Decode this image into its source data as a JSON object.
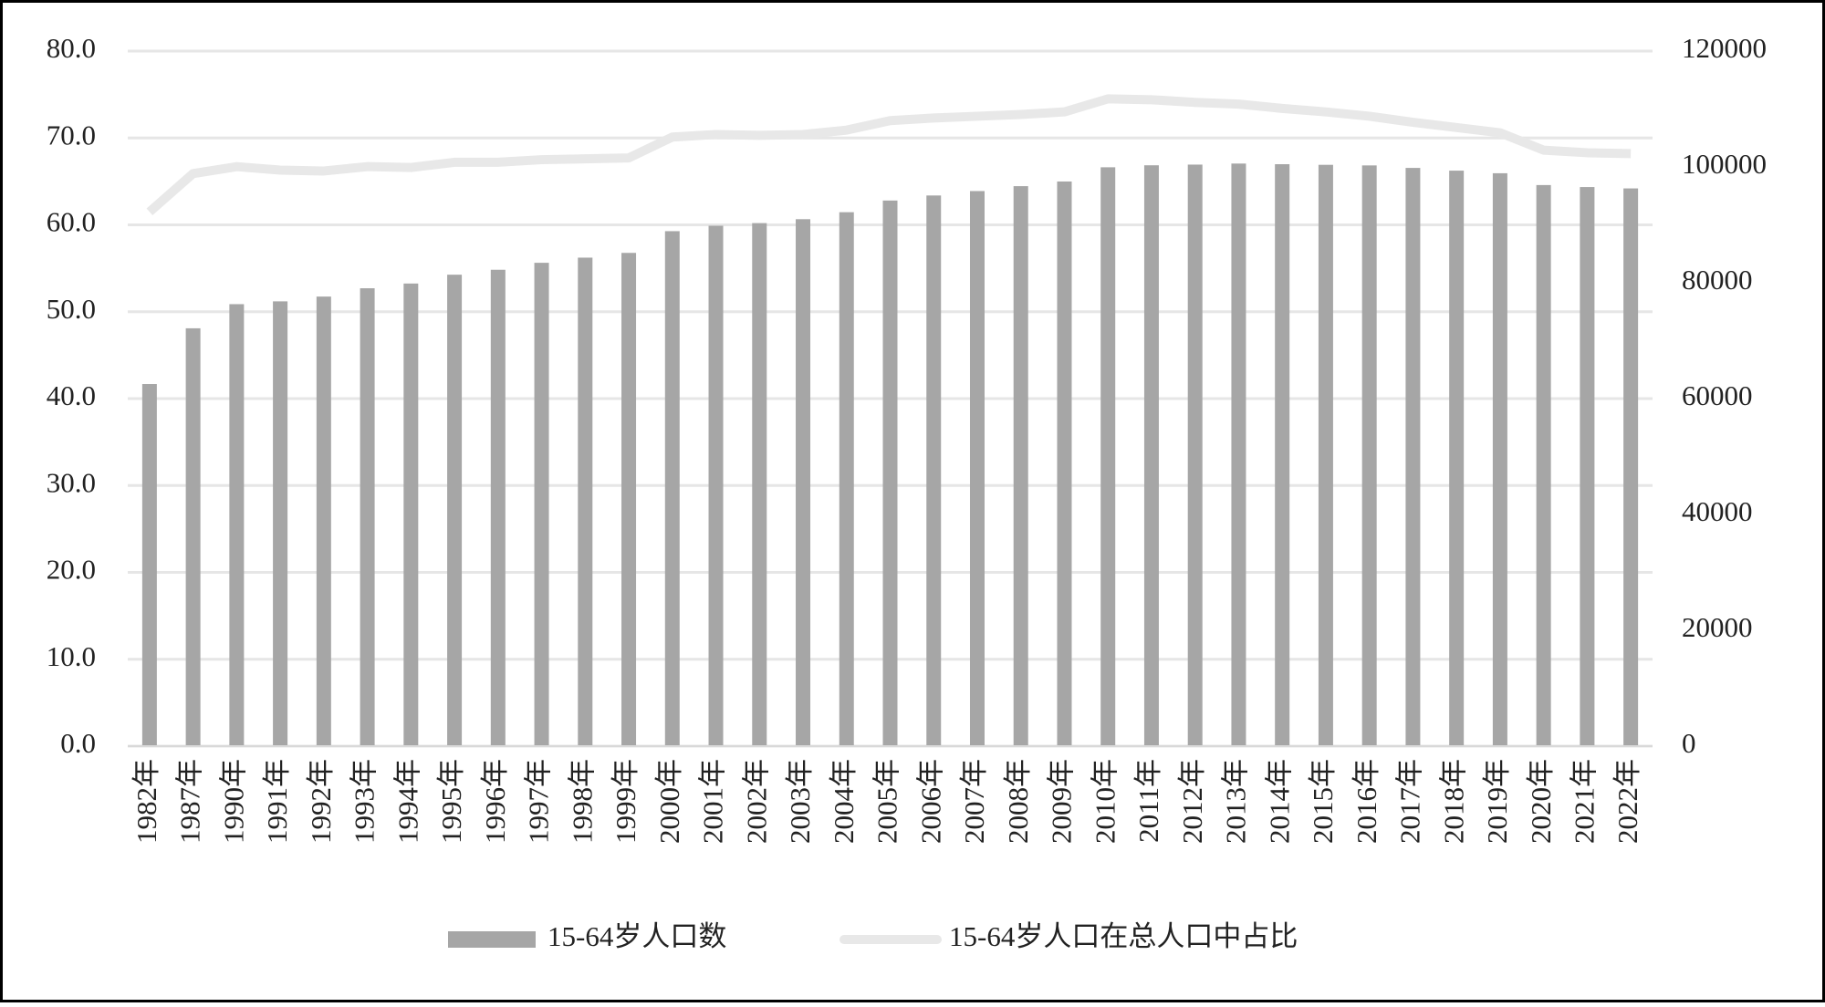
{
  "chart_data": {
    "type": "bar-line",
    "categories": [
      "1982年",
      "1987年",
      "1990年",
      "1991年",
      "1992年",
      "1993年",
      "1994年",
      "1995年",
      "1996年",
      "1997年",
      "1998年",
      "1999年",
      "2000年",
      "2001年",
      "2002年",
      "2003年",
      "2004年",
      "2005年",
      "2006年",
      "2007年",
      "2008年",
      "2009年",
      "2010年",
      "2011年",
      "2012年",
      "2013年",
      "2014年",
      "2015年",
      "2016年",
      "2017年",
      "2018年",
      "2019年",
      "2020年",
      "2021年",
      "2022年"
    ],
    "series": [
      {
        "name": "15-64岁人口数",
        "type": "bar",
        "axis": "y2",
        "color": "#a6a6a6",
        "values": [
          62517,
          72138,
          76306,
          76791,
          77614,
          79051,
          79868,
          81393,
          82245,
          83448,
          84338,
          85157,
          88910,
          89849,
          90302,
          90976,
          92184,
          94197,
          95068,
          95833,
          96680,
          97484,
          99938,
          100283,
          100403,
          100582,
          100469,
          100361,
          100260,
          99829,
          99357,
          98910,
          96871,
          96526,
          96289
        ]
      },
      {
        "name": "15-64岁人口在总人口中占比",
        "type": "line",
        "axis": "y",
        "color": "#e8e8e8",
        "values": [
          61.5,
          65.9,
          66.7,
          66.3,
          66.2,
          66.7,
          66.6,
          67.2,
          67.2,
          67.5,
          67.6,
          67.7,
          70.1,
          70.4,
          70.3,
          70.4,
          70.9,
          72.0,
          72.3,
          72.5,
          72.7,
          73.0,
          74.5,
          74.4,
          74.1,
          73.9,
          73.4,
          73.0,
          72.5,
          71.8,
          71.2,
          70.6,
          68.6,
          68.3,
          68.2
        ]
      }
    ],
    "ylim": [
      0,
      80
    ],
    "yticks": [
      {
        "value": 0,
        "label": "0.0"
      },
      {
        "value": 10,
        "label": "10.0"
      },
      {
        "value": 20,
        "label": "20.0"
      },
      {
        "value": 30,
        "label": "30.0"
      },
      {
        "value": 40,
        "label": "40.0"
      },
      {
        "value": 50,
        "label": "50.0"
      },
      {
        "value": 60,
        "label": "60.0"
      },
      {
        "value": 70,
        "label": "70.0"
      },
      {
        "value": 80,
        "label": "80.0"
      }
    ],
    "y2lim": [
      0,
      120000
    ],
    "y2ticks": [
      0,
      20000,
      40000,
      60000,
      80000,
      100000,
      120000
    ],
    "grid": true
  }
}
